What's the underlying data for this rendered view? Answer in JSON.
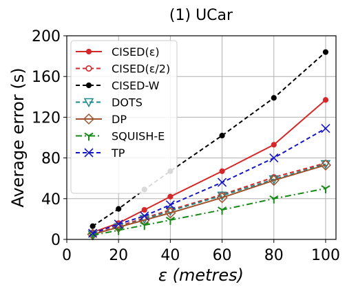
{
  "chart_data": {
    "type": "line",
    "title": "(1) UCar",
    "xlabel": "ε (metres)",
    "ylabel": "Average error (s)",
    "xlim": [
      0,
      104
    ],
    "ylim": [
      0,
      200
    ],
    "xticks": [
      0,
      20,
      40,
      60,
      80,
      100
    ],
    "yticks": [
      0,
      40,
      80,
      120,
      160,
      200
    ],
    "grid": true,
    "legend_position": "top-left",
    "x": [
      10,
      20,
      30,
      40,
      60,
      80,
      100
    ],
    "series": [
      {
        "name": "CISED(ε)",
        "values": [
          7,
          16,
          29,
          42,
          67,
          93,
          137
        ],
        "color": "#d62728",
        "dash": "",
        "marker": "dot",
        "filled": true
      },
      {
        "name": "CISED(ε/2)",
        "values": [
          5,
          13,
          21,
          29,
          44,
          61,
          75
        ],
        "color": "#d62728",
        "dash": "6,4",
        "marker": "circle",
        "filled": false
      },
      {
        "name": "CISED-W",
        "values": [
          13,
          30,
          49,
          67,
          102,
          139,
          184
        ],
        "color": "#000000",
        "dash": "6,4",
        "marker": "dot",
        "filled": true
      },
      {
        "name": "DOTS",
        "values": [
          5,
          12,
          20,
          28,
          43,
          59,
          74
        ],
        "color": "#1f8a8a",
        "dash": "6,4",
        "marker": "triangle",
        "filled": false
      },
      {
        "name": "DP",
        "values": [
          5,
          12,
          19,
          26,
          41,
          58,
          73
        ],
        "color": "#a0522d",
        "dash": "",
        "marker": "diamond",
        "filled": false
      },
      {
        "name": "SQUISH-E",
        "values": [
          4,
          9,
          14,
          19,
          29,
          40,
          50
        ],
        "color": "#168a16",
        "dash": "9,4,2,4",
        "marker": "tri_down",
        "filled": false
      },
      {
        "name": "TP",
        "values": [
          6,
          15,
          23,
          34,
          56,
          80,
          109
        ],
        "color": "#1414c8",
        "dash": "6,4",
        "marker": "x",
        "filled": false
      }
    ]
  }
}
